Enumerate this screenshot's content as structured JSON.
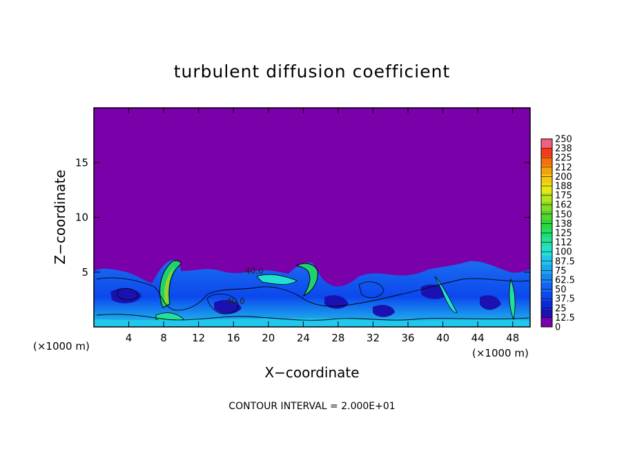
{
  "chart_data": {
    "type": "heatmap",
    "title": "turbulent diffusion coefficient",
    "xlabel": "X−coordinate",
    "ylabel": "Z−coordinate",
    "x_unit_left": "(×1000 m)",
    "x_unit_right": "(×1000 m)",
    "xlim": [
      0,
      50
    ],
    "ylim": [
      0,
      20
    ],
    "x_ticks": [
      4,
      8,
      12,
      16,
      20,
      24,
      28,
      32,
      36,
      40,
      44,
      48
    ],
    "y_ticks": [
      5,
      10,
      15
    ],
    "colorbar_levels": [
      "0",
      "12.5",
      "25",
      "37.5",
      "50",
      "62.5",
      "75",
      "87.5",
      "100",
      "112",
      "125",
      "138",
      "150",
      "162",
      "175",
      "188",
      "200",
      "212",
      "225",
      "238",
      "250"
    ],
    "colorbar_colors": [
      "#7a00a9",
      "#1a12b0",
      "#0a2ad8",
      "#0c48ee",
      "#1066f2",
      "#1486ee",
      "#18a8ee",
      "#1ec8ec",
      "#22e0d0",
      "#22e09a",
      "#20dc6a",
      "#2ad63a",
      "#52d628",
      "#86da22",
      "#b8e218",
      "#e6e810",
      "#f4c80c",
      "#f6a00c",
      "#f6700e",
      "#f43a18",
      "#f06080"
    ],
    "background_value": 0,
    "contour_labels": [
      "40.0",
      "40.0"
    ],
    "annotation": "CONTOUR INTERVAL = 2.000E+01",
    "grid": false
  }
}
